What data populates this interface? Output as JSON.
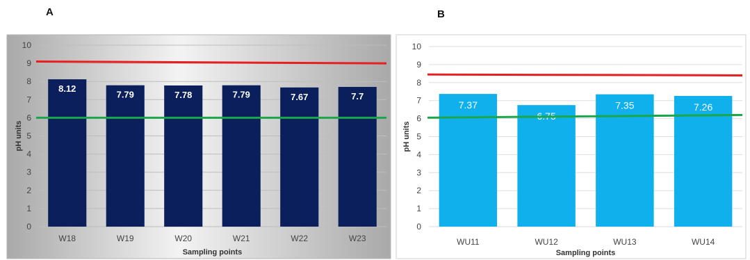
{
  "panels": [
    {
      "letter": "A"
    },
    {
      "letter": "B"
    }
  ],
  "chart_data": [
    {
      "type": "bar",
      "categories": [
        "W18",
        "W19",
        "W20",
        "W21",
        "W22",
        "W23"
      ],
      "values": [
        8.12,
        7.79,
        7.78,
        7.79,
        7.67,
        7.7
      ],
      "data_labels": [
        "8.12",
        "7.79",
        "7.78",
        "7.79",
        "7.67",
        "7.7"
      ],
      "xlabel": "Sampling points",
      "ylabel": "pH units",
      "ylim": [
        0,
        10
      ],
      "yticks": [
        "0",
        "1",
        "2",
        "3",
        "4",
        "5",
        "6",
        "7",
        "8",
        "9",
        "10"
      ],
      "grid": true,
      "bar_color": "#0a1f5c",
      "background": "gradient-gray",
      "reference_lines": [
        {
          "color": "#e81f1f",
          "y_start": 9.1,
          "y_end": 9.0
        },
        {
          "color": "#1aa64a",
          "y_start": 6.0,
          "y_end": 6.0
        }
      ]
    },
    {
      "type": "bar",
      "categories": [
        "WU11",
        "WU12",
        "WU13",
        "WU14"
      ],
      "values": [
        7.37,
        6.75,
        7.35,
        7.26
      ],
      "data_labels": [
        "7.37",
        "6.75",
        "7.35",
        "7.26"
      ],
      "xlabel": "Sampling points",
      "ylabel": "pH units",
      "ylim": [
        0,
        10
      ],
      "yticks": [
        "0",
        "1",
        "2",
        "3",
        "4",
        "5",
        "6",
        "7",
        "8",
        "9",
        "10"
      ],
      "grid": true,
      "bar_color": "#0fb0ec",
      "background": "white",
      "reference_lines": [
        {
          "color": "#e81f1f",
          "y_start": 8.45,
          "y_end": 8.4
        },
        {
          "color": "#1aa64a",
          "y_start": 6.05,
          "y_end": 6.2
        }
      ]
    }
  ]
}
